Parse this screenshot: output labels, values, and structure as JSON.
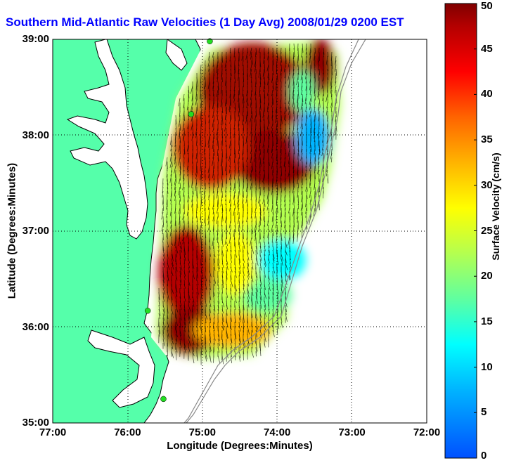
{
  "title": "Southern Mid-Atlantic Raw Velocities (1 Day Avg) 2008/01/29 0200 EST",
  "axes": {
    "xlabel": "Longitude (Degrees:Minutes)",
    "ylabel": "Latitude (Degrees:Minutes)",
    "x_ticks": [
      "77:00",
      "76:00",
      "75:00",
      "74:00",
      "73:00",
      "72:00"
    ],
    "y_ticks": [
      "39:00",
      "38:00",
      "37:00",
      "36:00",
      "35:00"
    ],
    "xlim_deg_west": [
      77,
      72
    ],
    "ylim_deg_north": [
      35,
      39
    ],
    "grid": "dotted"
  },
  "colorbar": {
    "label": "Surface Velocity (cm/s)",
    "ticks": [
      "50",
      "45",
      "40",
      "35",
      "30",
      "25",
      "20",
      "15",
      "10",
      "5",
      "0"
    ],
    "range": [
      0,
      50
    ],
    "colormap": "jet"
  },
  "colors": {
    "title": "#0000ff",
    "land": "#55ffaa",
    "coast": "#000000",
    "bathymetry": "#888888",
    "station_marker": "#22dd22"
  },
  "stations": [
    {
      "lon": -74.9,
      "lat": 38.98
    },
    {
      "lon": -75.15,
      "lat": 38.22
    },
    {
      "lon": -75.73,
      "lat": 36.17
    },
    {
      "lon": -75.52,
      "lat": 35.25
    }
  ],
  "legend": "none"
}
